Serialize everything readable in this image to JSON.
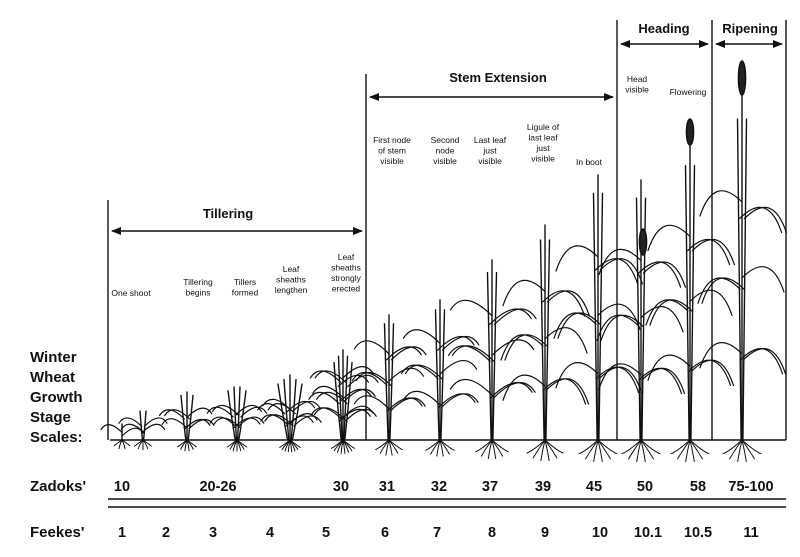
{
  "phases": [
    {
      "label": "Tillering"
    },
    {
      "label": "Stem Extension"
    },
    {
      "label": "Heading"
    },
    {
      "label": "Ripening"
    }
  ],
  "stage_descriptions": [
    {
      "lines": [
        "One shoot"
      ]
    },
    {
      "lines": [
        "Tillering",
        "begins"
      ]
    },
    {
      "lines": [
        "Tillers",
        "formed"
      ]
    },
    {
      "lines": [
        "Leaf",
        "sheaths",
        "lengthen"
      ]
    },
    {
      "lines": [
        "Leaf",
        "sheaths",
        "strongly",
        "erected"
      ]
    },
    {
      "lines": [
        "First node",
        "of stem",
        "visible"
      ]
    },
    {
      "lines": [
        "Second",
        "node",
        "visible"
      ]
    },
    {
      "lines": [
        "Last leaf",
        "just",
        "visible"
      ]
    },
    {
      "lines": [
        "Ligule of",
        "last leaf",
        "just",
        "visible"
      ]
    },
    {
      "lines": [
        "In boot"
      ]
    },
    {
      "lines": [
        "Head",
        "visible"
      ]
    },
    {
      "lines": [
        "Flowering"
      ]
    }
  ],
  "side_title": [
    "Winter",
    "Wheat",
    "Growth",
    "Stage",
    "Scales:"
  ],
  "scales": {
    "zadoks": {
      "label": "Zadoks'",
      "values": [
        "10",
        "20-26",
        "30",
        "31",
        "32",
        "37",
        "39",
        "45",
        "50",
        "58",
        "75-100"
      ]
    },
    "feekes": {
      "label": "Feekes'",
      "values": [
        "1",
        "2",
        "3",
        "4",
        "5",
        "6",
        "7",
        "8",
        "9",
        "10",
        "10.1",
        "10.5",
        "11"
      ]
    }
  }
}
